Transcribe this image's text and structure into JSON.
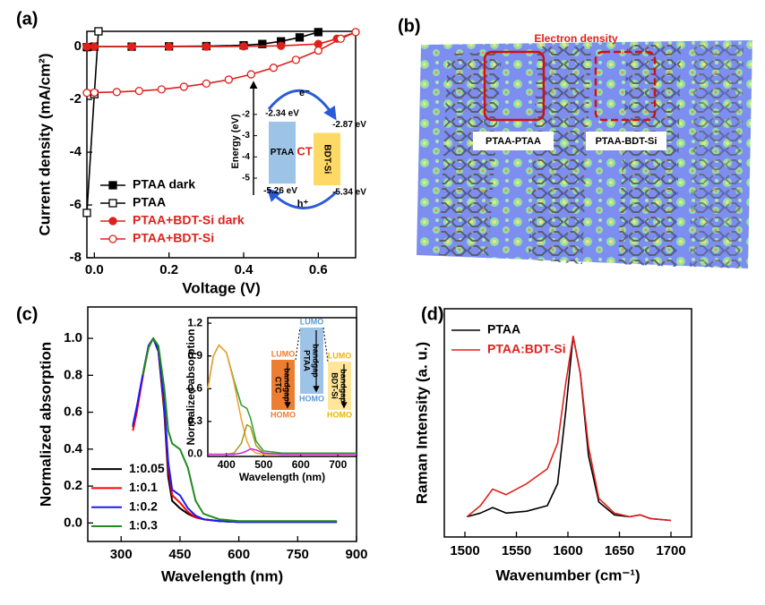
{
  "chart_data": [
    {
      "type": "line",
      "label": "(a)",
      "xlabel": "Voltage (V)",
      "ylabel": "Current density (mA/cm²)",
      "xlim": [
        -0.02,
        0.7
      ],
      "ylim": [
        -8,
        0.58
      ],
      "xticks": [
        {
          "value": 0,
          "label": "0.0"
        },
        0.2,
        0.4,
        0.6
      ],
      "yticks": [
        -8,
        -6,
        -4,
        -2,
        0
      ],
      "legend": "lower left",
      "series": [
        {
          "name": "PTAA dark",
          "color": "#000000",
          "marker": "square",
          "x": [
            -0.02,
            0,
            0.1,
            0.2,
            0.3,
            0.4,
            0.45,
            0.5,
            0.55,
            0.6
          ],
          "values": [
            -0.02,
            0,
            0,
            0.01,
            0.02,
            0.05,
            0.1,
            0.2,
            0.35,
            0.55
          ]
        },
        {
          "name": "PTAA",
          "color": "#000000",
          "marker": "square-open",
          "x": [
            -0.02,
            0,
            0.011
          ],
          "values": [
            -6.3,
            -1.8,
            0.58
          ]
        },
        {
          "name": "PTAA+BDT-Si dark",
          "color": "#e0201b",
          "marker": "circle",
          "x": [
            -0.02,
            0,
            0.1,
            0.2,
            0.3,
            0.4,
            0.5,
            0.6,
            0.65,
            0.7
          ],
          "values": [
            0,
            0,
            0,
            0,
            0,
            0.01,
            0.03,
            0.1,
            0.3,
            0.55
          ]
        },
        {
          "name": "PTAA+BDT-Si",
          "color": "#e0201b",
          "marker": "circle-open",
          "x": [
            -0.02,
            0,
            0.06,
            0.12,
            0.18,
            0.24,
            0.3,
            0.36,
            0.42,
            0.48,
            0.54,
            0.6,
            0.66,
            0.7
          ],
          "values": [
            -1.75,
            -1.74,
            -1.72,
            -1.68,
            -1.62,
            -1.52,
            -1.4,
            -1.25,
            -1.05,
            -0.8,
            -0.5,
            -0.15,
            0.3,
            0.55
          ]
        }
      ],
      "inset": {
        "type": "energy_levels",
        "ylabel": "Energy (eV)",
        "ylim": [
          -5.8,
          -1.5
        ],
        "yticks": [
          -2,
          -3,
          -4,
          -5
        ],
        "levels": [
          {
            "name": "PTAA",
            "top": -2.34,
            "bottom": -5.26,
            "top_label": "-2.34 eV",
            "bottom_label": "-5.26 eV",
            "color": "#9dc3e6"
          },
          {
            "name": "BDT-Si",
            "top": -2.87,
            "bottom": -5.34,
            "top_label": "-2.87 eV",
            "bottom_label": "-5.34 eV",
            "color": "#ffd966"
          }
        ],
        "transfer": "CT",
        "electron": "e⁻",
        "hole": "h⁺"
      }
    },
    {
      "type": "line",
      "label": "(c)",
      "xlabel": "Wavelength (nm)",
      "ylabel": "Normalized absorption",
      "xlim": [
        215,
        900
      ],
      "ylim": [
        -0.1,
        1.17
      ],
      "xticks": [
        300,
        450,
        600,
        750,
        900
      ],
      "yticks": [
        {
          "value": 0,
          "label": "0.0"
        },
        0.2,
        0.4,
        0.6,
        0.8,
        {
          "value": 1,
          "label": "1.0"
        }
      ],
      "legend": "lower left",
      "x": [
        330,
        340,
        355,
        370,
        382,
        395,
        410,
        420,
        430,
        450,
        470,
        490,
        510,
        550,
        600,
        700,
        850
      ],
      "series": [
        {
          "name": "1:0.05",
          "color": "#000000",
          "values": [
            0.52,
            0.62,
            0.8,
            0.96,
            1.0,
            0.93,
            0.6,
            0.25,
            0.12,
            0.08,
            0.05,
            0.03,
            0.02,
            0.01,
            0.005,
            0.005,
            0.005
          ]
        },
        {
          "name": "1:0.1",
          "color": "#ff0000",
          "values": [
            0.5,
            0.6,
            0.79,
            0.96,
            1.0,
            0.94,
            0.62,
            0.3,
            0.15,
            0.11,
            0.06,
            0.03,
            0.02,
            0.01,
            0.005,
            0.005,
            0.005
          ]
        },
        {
          "name": "1:0.2",
          "color": "#1a1aff",
          "values": [
            0.53,
            0.63,
            0.8,
            0.96,
            1.0,
            0.94,
            0.65,
            0.33,
            0.18,
            0.15,
            0.08,
            0.04,
            0.02,
            0.01,
            0.005,
            0.005,
            0.005
          ]
        },
        {
          "name": "1:0.3",
          "color": "#1e8c1e",
          "values": [
            null,
            null,
            0.8,
            0.95,
            1.0,
            0.96,
            0.73,
            0.5,
            0.43,
            0.4,
            0.3,
            0.12,
            0.05,
            0.02,
            0.01,
            0.01,
            0.01
          ]
        }
      ],
      "inset": {
        "type": "line",
        "xlabel": "Wavelength (nm)",
        "ylabel": "Normalized absorption",
        "xlim": [
          350,
          750
        ],
        "ylim": [
          -0.02,
          1.25
        ],
        "xticks": [
          400,
          500,
          600,
          700
        ],
        "yticks": [
          {
            "value": 0,
            "label": "0.0"
          },
          0.3,
          0.6,
          0.9,
          1.2
        ],
        "x": [
          350,
          365,
          380,
          400,
          420,
          440,
          455,
          465,
          480,
          500,
          550,
          750
        ],
        "series": [
          {
            "color": "#2e9e2e",
            "values": [
              0.6,
              0.9,
              1.0,
              0.93,
              0.68,
              0.45,
              0.42,
              0.33,
              0.12,
              0.03,
              0.01,
              0.01
            ]
          },
          {
            "color": "#f0a030",
            "values": [
              0.6,
              0.9,
              1.0,
              0.93,
              0.66,
              0.32,
              0.12,
              0.05,
              0.01,
              0,
              0,
              0
            ]
          },
          {
            "color": "#9c9c1c",
            "values": [
              0,
              0,
              0,
              0,
              0.01,
              0.1,
              0.27,
              0.25,
              0.08,
              0.01,
              0,
              0
            ]
          },
          {
            "color": "#d020d0",
            "values": [
              0,
              0,
              0,
              0,
              0,
              0.01,
              0.03,
              0.05,
              0.04,
              0.01,
              0,
              0
            ]
          }
        ],
        "band_diagram": [
          {
            "name": "PTAA",
            "gap": "bandgap",
            "lumo": "LUMO",
            "homo": "HOMO",
            "color": "#9dc3e6",
            "text_color": "#5b9bd5"
          },
          {
            "name": "CTC",
            "gap": "bandgap",
            "lumo": "LUMO",
            "homo": "HOMO",
            "color": "#ed7d31",
            "text_color": "#ed7d31"
          },
          {
            "name": "BDT-Si",
            "gap": "bandgap",
            "lumo": "LUMO",
            "homo": "HOMO",
            "color": "#ffe699",
            "text_color": "#f0b400"
          }
        ]
      }
    },
    {
      "type": "line",
      "label": "(d)",
      "xlabel": "Wavenumber (cm⁻¹)",
      "ylabel": "Raman Intensity (a. u.)",
      "xlim": [
        1480,
        1720
      ],
      "ylim": [
        -0.09,
        1.15
      ],
      "xticks": [
        1500,
        1550,
        1600,
        1650,
        1700
      ],
      "yticks": [],
      "legend": "upper left",
      "x": [
        1502,
        1515,
        1527,
        1540,
        1560,
        1580,
        1590,
        1598,
        1605,
        1612,
        1620,
        1630,
        1645,
        1660,
        1670,
        1680,
        1700
      ],
      "series": [
        {
          "name": "PTAA",
          "color": "#000000",
          "values": [
            0.02,
            0.04,
            0.07,
            0.04,
            0.05,
            0.08,
            0.2,
            0.6,
            1.0,
            0.8,
            0.35,
            0.1,
            0.03,
            0.02,
            0.03,
            0.01,
            0.0
          ]
        },
        {
          "name": "PTAA:BDT-Si",
          "color": "#e0201b",
          "values": [
            0.02,
            0.08,
            0.17,
            0.14,
            0.2,
            0.28,
            0.42,
            0.75,
            1.0,
            0.8,
            0.4,
            0.12,
            0.04,
            0.02,
            0.03,
            0.01,
            0.0
          ]
        }
      ]
    }
  ],
  "image_panel": {
    "label": "(b)",
    "caption": "Electron density",
    "regions": [
      "PTAA-PTAA",
      "PTAA-BDT-Si"
    ]
  }
}
